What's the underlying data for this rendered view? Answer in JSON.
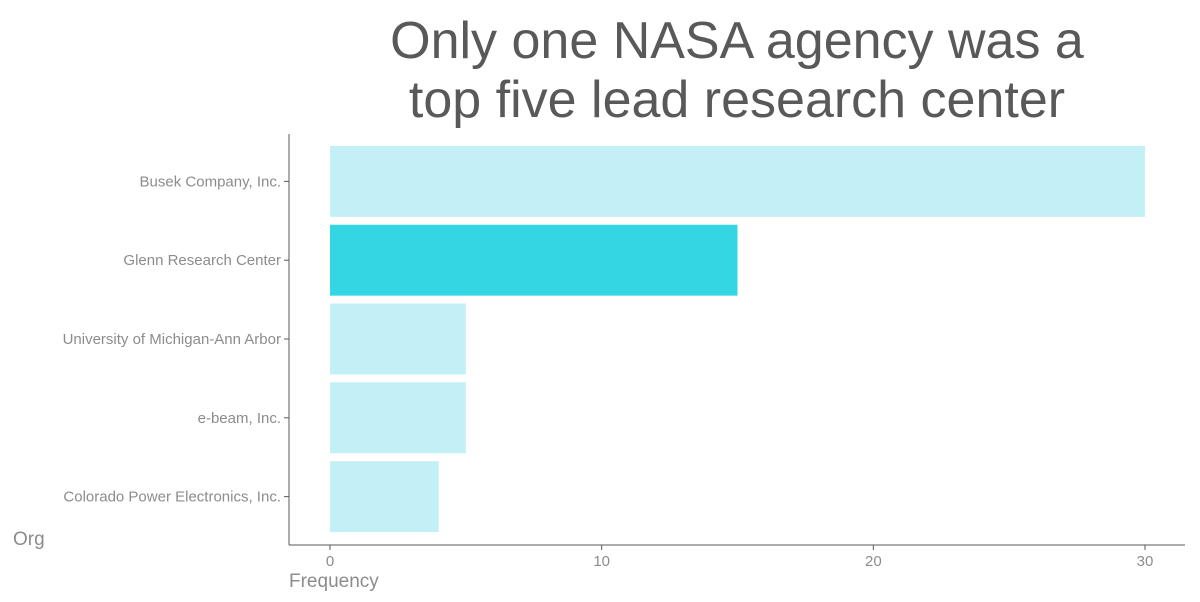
{
  "chart_data": {
    "type": "bar",
    "orientation": "horizontal",
    "title_lines": [
      "Only one NASA agency was a",
      "top five lead research center"
    ],
    "xlabel": "Frequency",
    "ylabel": "Org",
    "categories": [
      "Busek Company, Inc.",
      "Glenn Research Center",
      "University of Michigan-Ann Arbor",
      "e-beam, Inc.",
      "Colorado Power Electronics, Inc."
    ],
    "values": [
      30,
      15,
      5,
      5,
      4
    ],
    "highlight": [
      false,
      true,
      false,
      false,
      false
    ],
    "xlim": [
      0,
      30
    ],
    "xticks": [
      0,
      10,
      20,
      30
    ],
    "grid": false,
    "legend": "none",
    "colors": {
      "bar": "#c2f0f6",
      "highlight": "#33d6e2",
      "axis": "#595959",
      "text": "#8c8c8c",
      "title": "#595959"
    }
  }
}
